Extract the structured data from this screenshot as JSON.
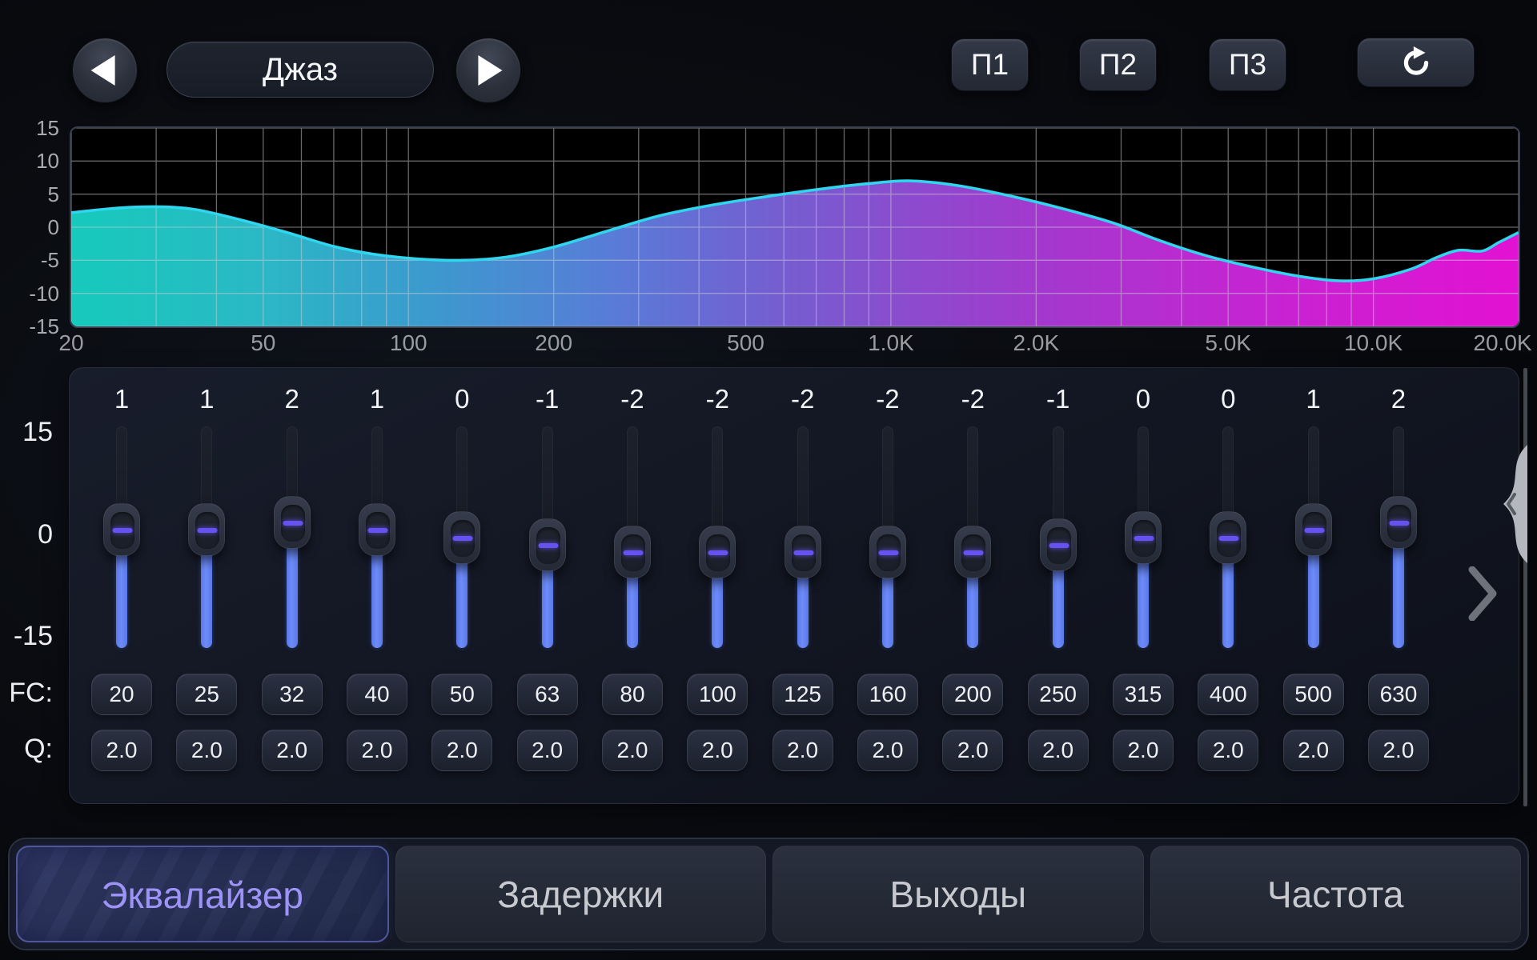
{
  "header": {
    "preset": {
      "label": "Джаз"
    },
    "memory_buttons": [
      {
        "label": "П1"
      },
      {
        "label": "П2"
      },
      {
        "label": "П3"
      }
    ],
    "reset_icon": "refresh-clockwise"
  },
  "chart_data": {
    "type": "area",
    "title": "EQ frequency response",
    "x_scale": "log",
    "x_range": [
      20,
      20000
    ],
    "y_range": [
      -15,
      15
    ],
    "grid": true,
    "y_ticks": [
      15,
      10,
      5,
      0,
      -5,
      -10,
      -15
    ],
    "x_ticks": [
      {
        "f": 20,
        "label": "20"
      },
      {
        "f": 50,
        "label": "50"
      },
      {
        "f": 100,
        "label": "100"
      },
      {
        "f": 200,
        "label": "200"
      },
      {
        "f": 500,
        "label": "500"
      },
      {
        "f": 1000,
        "label": "1.0K"
      },
      {
        "f": 2000,
        "label": "2.0K"
      },
      {
        "f": 5000,
        "label": "5.0K"
      },
      {
        "f": 10000,
        "label": "10.0K"
      },
      {
        "f": 20000,
        "label": "20.0K"
      }
    ],
    "grid_freqs": [
      20,
      30,
      40,
      50,
      60,
      70,
      80,
      90,
      100,
      200,
      300,
      400,
      500,
      600,
      700,
      800,
      900,
      1000,
      2000,
      3000,
      4000,
      5000,
      6000,
      7000,
      8000,
      9000,
      10000,
      20000
    ],
    "curve": [
      [
        20,
        2.2
      ],
      [
        25,
        2.9
      ],
      [
        30,
        3.1
      ],
      [
        36,
        2.7
      ],
      [
        45,
        1.1
      ],
      [
        56,
        -0.8
      ],
      [
        70,
        -2.9
      ],
      [
        85,
        -4.1
      ],
      [
        105,
        -4.8
      ],
      [
        130,
        -5.0
      ],
      [
        160,
        -4.5
      ],
      [
        200,
        -3.0
      ],
      [
        255,
        -0.7
      ],
      [
        330,
        1.7
      ],
      [
        430,
        3.4
      ],
      [
        560,
        4.7
      ],
      [
        720,
        5.8
      ],
      [
        900,
        6.6
      ],
      [
        1100,
        7.0
      ],
      [
        1400,
        6.2
      ],
      [
        1800,
        4.6
      ],
      [
        2300,
        2.7
      ],
      [
        2900,
        0.6
      ],
      [
        3600,
        -2.0
      ],
      [
        4500,
        -4.3
      ],
      [
        5600,
        -6.0
      ],
      [
        7000,
        -7.4
      ],
      [
        8500,
        -8.1
      ],
      [
        10000,
        -7.8
      ],
      [
        12000,
        -6.3
      ],
      [
        13500,
        -4.6
      ],
      [
        15000,
        -3.5
      ],
      [
        16800,
        -3.6
      ],
      [
        18200,
        -2.3
      ],
      [
        20000,
        -0.8
      ]
    ],
    "stroke_color": "#2fd6ee",
    "fill_gradient": [
      "#17d2c3",
      "#2cc0cd",
      "#3f9fd6",
      "#5b82e0",
      "#7566da",
      "#8f50d6",
      "#aa3bd6",
      "#c928da",
      "#ec12dc"
    ],
    "grid_color": "rgba(205,206,212,0.5)"
  },
  "eq": {
    "scale_labels": [
      "15",
      "0",
      "-15"
    ],
    "fc_label": "FC:",
    "q_label": "Q:",
    "bands": [
      {
        "gain": 1,
        "gain_label": "1",
        "fc": "20",
        "q": "2.0"
      },
      {
        "gain": 1,
        "gain_label": "1",
        "fc": "25",
        "q": "2.0"
      },
      {
        "gain": 2,
        "gain_label": "2",
        "fc": "32",
        "q": "2.0"
      },
      {
        "gain": 1,
        "gain_label": "1",
        "fc": "40",
        "q": "2.0"
      },
      {
        "gain": 0,
        "gain_label": "0",
        "fc": "50",
        "q": "2.0"
      },
      {
        "gain": -1,
        "gain_label": "-1",
        "fc": "63",
        "q": "2.0"
      },
      {
        "gain": -2,
        "gain_label": "-2",
        "fc": "80",
        "q": "2.0"
      },
      {
        "gain": -2,
        "gain_label": "-2",
        "fc": "100",
        "q": "2.0"
      },
      {
        "gain": -2,
        "gain_label": "-2",
        "fc": "125",
        "q": "2.0"
      },
      {
        "gain": -2,
        "gain_label": "-2",
        "fc": "160",
        "q": "2.0"
      },
      {
        "gain": -2,
        "gain_label": "-2",
        "fc": "200",
        "q": "2.0"
      },
      {
        "gain": -1,
        "gain_label": "-1",
        "fc": "250",
        "q": "2.0"
      },
      {
        "gain": 0,
        "gain_label": "0",
        "fc": "315",
        "q": "2.0"
      },
      {
        "gain": 0,
        "gain_label": "0",
        "fc": "400",
        "q": "2.0"
      },
      {
        "gain": 1,
        "gain_label": "1",
        "fc": "500",
        "q": "2.0"
      },
      {
        "gain": 2,
        "gain_label": "2",
        "fc": "630",
        "q": "2.0"
      }
    ],
    "slider_fill_color": "#6e8cf8",
    "thumb_dash_color": "#6453ee"
  },
  "tabs": [
    {
      "name": "tab-equalizer",
      "label": "Эквалайзер",
      "active": true
    },
    {
      "name": "tab-delays",
      "label": "Задержки",
      "active": false
    },
    {
      "name": "tab-outputs",
      "label": "Выходы",
      "active": false
    },
    {
      "name": "tab-frequency",
      "label": "Частота",
      "active": false
    }
  ],
  "accent": {
    "active_tab_text": "#9d93f6"
  }
}
